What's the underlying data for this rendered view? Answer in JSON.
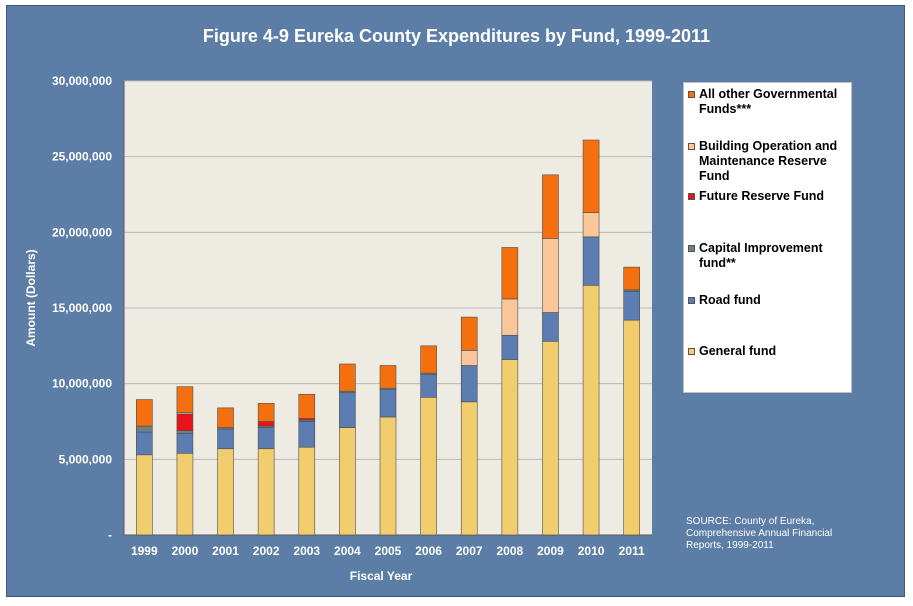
{
  "title": "Figure 4-9 Eureka County Expenditures by Fund, 1999-2011",
  "source_note": "SOURCE: County of Eureka, Comprehensive Annual Financial Reports, 1999-2011",
  "colors": {
    "General fund": "#f2cd6e",
    "Road fund": "#5b7db1",
    "Capital Improvement fund**": "#6f7f84",
    "Future Reserve Fund": "#e8141a",
    "Building Operation and Maintenance Reserve Fund": "#fbc79a",
    "All other Governmental Funds***": "#f4700f"
  },
  "chart_data": {
    "type": "bar",
    "stacked": true,
    "title": "Figure 4-9 Eureka County Expenditures by Fund, 1999-2011",
    "xlabel": "Fiscal Year",
    "ylabel": "Amount (Dollars)",
    "ylim": [
      0,
      30000000
    ],
    "yticks": [
      "-",
      "5,000,000",
      "10,000,000",
      "15,000,000",
      "20,000,000",
      "25,000,000",
      "30,000,000"
    ],
    "grid": true,
    "legend_position": "right",
    "categories": [
      "1999",
      "2000",
      "2001",
      "2002",
      "2003",
      "2004",
      "2005",
      "2006",
      "2007",
      "2008",
      "2009",
      "2010",
      "2011"
    ],
    "series": [
      {
        "name": "General fund",
        "values": [
          5300000,
          5400000,
          5700000,
          5700000,
          5800000,
          7100000,
          7800000,
          9100000,
          8800000,
          11600000,
          12800000,
          16500000,
          14200000
        ]
      },
      {
        "name": "Road fund",
        "values": [
          1500000,
          1300000,
          1300000,
          1400000,
          1700000,
          2300000,
          1800000,
          1500000,
          2400000,
          1600000,
          1900000,
          3200000,
          1900000
        ]
      },
      {
        "name": "Capital Improvement fund**",
        "values": [
          400000,
          200000,
          100000,
          100000,
          100000,
          100000,
          100000,
          100000,
          0,
          0,
          0,
          0,
          100000
        ]
      },
      {
        "name": "Future Reserve Fund",
        "values": [
          0,
          1100000,
          0,
          300000,
          100000,
          0,
          0,
          0,
          0,
          0,
          0,
          0,
          0
        ]
      },
      {
        "name": "Building Operation and Maintenance Reserve Fund",
        "values": [
          0,
          100000,
          0,
          0,
          0,
          0,
          0,
          0,
          1000000,
          2400000,
          4900000,
          1600000,
          0
        ]
      },
      {
        "name": "All other Governmental Funds***",
        "values": [
          1750000,
          1700000,
          1300000,
          1200000,
          1600000,
          1800000,
          1500000,
          1800000,
          2200000,
          3400000,
          4200000,
          4800000,
          1500000
        ]
      }
    ],
    "legend_order": [
      "All other Governmental Funds***",
      "Building Operation and Maintenance Reserve Fund",
      "Future Reserve Fund",
      "Capital Improvement fund**",
      "Road fund",
      "General fund"
    ]
  }
}
